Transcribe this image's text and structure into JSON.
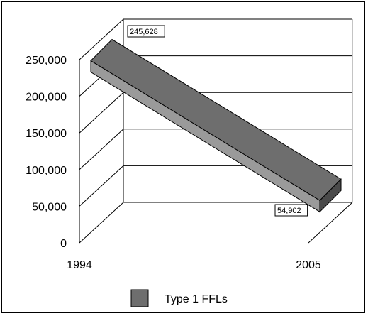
{
  "chart_data": {
    "type": "line",
    "style": "3d-ribbon",
    "x": [
      "1994",
      "2005"
    ],
    "series": [
      {
        "name": "Type 1 FFLs",
        "values": [
          245628,
          54902
        ],
        "color": "#6e6e6e"
      }
    ],
    "data_labels": [
      "245,628",
      "54,902"
    ],
    "y_ticks": [
      "0",
      "50,000",
      "100,000",
      "150,000",
      "200,000",
      "250,000"
    ],
    "ylim": [
      0,
      250000
    ],
    "grid": true,
    "legend": "bottom",
    "title": "",
    "xlabel": "",
    "ylabel": ""
  }
}
